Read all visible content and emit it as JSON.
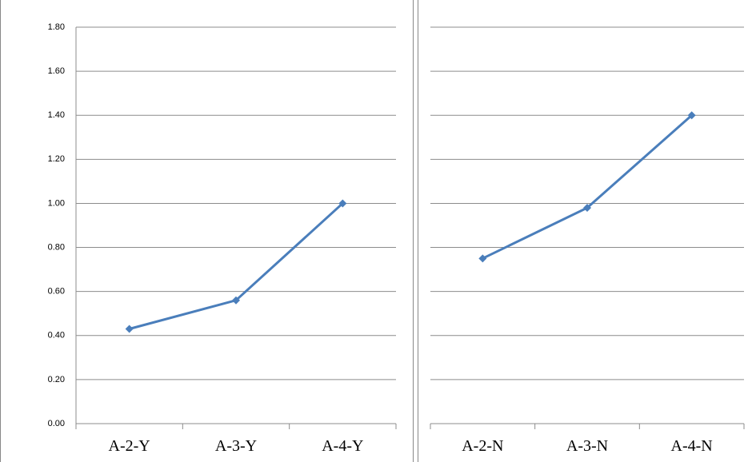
{
  "chart_data": [
    {
      "type": "line",
      "categories": [
        "A-2-Y",
        "A-3-Y",
        "A-4-Y"
      ],
      "series": [
        {
          "color": "#4a7ebb",
          "values": [
            0.43,
            0.56,
            1.0
          ]
        }
      ],
      "ylim": [
        0,
        1.8
      ],
      "yticks": [
        {
          "value": 0,
          "label": "0.00"
        },
        {
          "value": 0.2,
          "label": "0.20"
        },
        {
          "value": 0.4,
          "label": "0.40"
        },
        {
          "value": 0.6,
          "label": "0.60"
        },
        {
          "value": 0.8,
          "label": "0.80"
        },
        {
          "value": 1.0,
          "label": "1.00"
        },
        {
          "value": 1.2,
          "label": "1.20"
        },
        {
          "value": 1.4,
          "label": "1.40"
        },
        {
          "value": 1.6,
          "label": "1.60"
        },
        {
          "value": 1.8,
          "label": "1.80"
        }
      ],
      "grid": true
    },
    {
      "type": "line",
      "categories": [
        "A-2-N",
        "A-3-N",
        "A-4-N"
      ],
      "series": [
        {
          "color": "#4a7ebb",
          "values": [
            0.75,
            0.98,
            1.4
          ]
        }
      ],
      "ylim": [
        0,
        1.8
      ],
      "yticks": [
        0,
        0.2,
        0.4,
        0.6,
        0.8,
        1.0,
        1.2,
        1.4,
        1.6,
        1.8
      ],
      "grid": true
    }
  ]
}
